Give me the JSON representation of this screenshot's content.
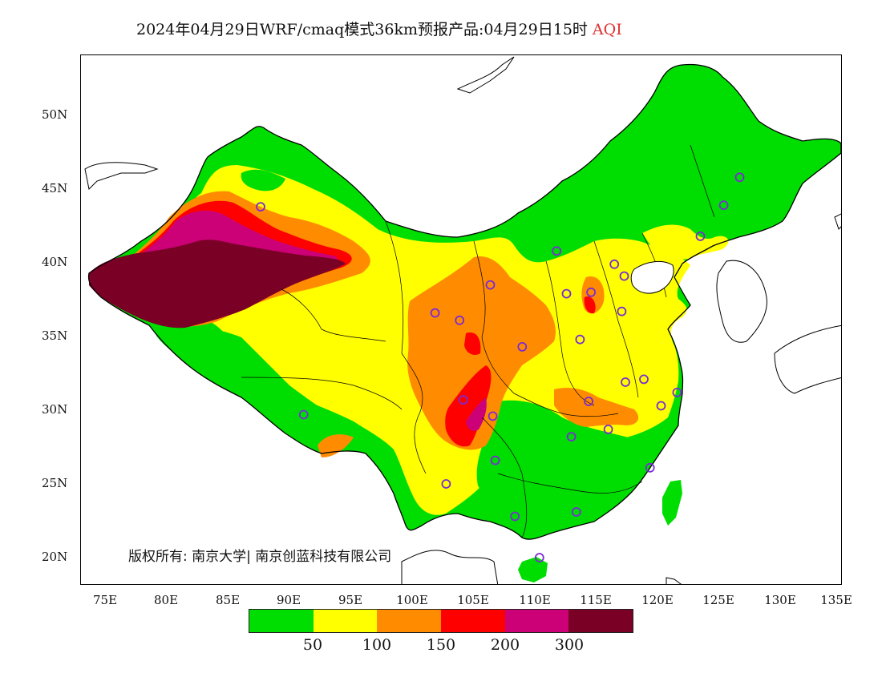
{
  "title": {
    "main": "2024年04月29日WRF/cmaq模式36km预报产品:04月29日15时",
    "variable": "AQI"
  },
  "copyright": "版权所有: 南京大学| 南京创蓝科技有限公司",
  "axes": {
    "lat_labels": [
      "50N",
      "45N",
      "40N",
      "35N",
      "30N",
      "25N",
      "20N"
    ],
    "lon_labels": [
      "75E",
      "80E",
      "85E",
      "90E",
      "95E",
      "100E",
      "105E",
      "110E",
      "115E",
      "120E",
      "125E",
      "130E",
      "135E"
    ]
  },
  "legend": {
    "colors": [
      "#00dd00",
      "#ffff00",
      "#ff8c00",
      "#ff0000",
      "#cc0077",
      "#7a0026"
    ],
    "ticks": [
      "50",
      "100",
      "150",
      "200",
      "300"
    ]
  },
  "map": {
    "extent": {
      "lon": [
        73,
        135
      ],
      "lat": [
        18,
        54
      ]
    },
    "aqi_colors": {
      "good": "#00dd00",
      "moderate": "#ffff00",
      "unhealthy_sensitive": "#ff8c00",
      "unhealthy": "#ff0000",
      "very_unhealthy": "#cc0077",
      "hazardous": "#7a0026"
    },
    "station_color": "#7a2bd6",
    "stations": [
      [
        126.6,
        45.8
      ],
      [
        125.3,
        43.9
      ],
      [
        123.4,
        41.8
      ],
      [
        111.7,
        40.8
      ],
      [
        116.4,
        39.9
      ],
      [
        117.2,
        39.1
      ],
      [
        114.5,
        38.0
      ],
      [
        112.5,
        37.9
      ],
      [
        106.3,
        38.5
      ],
      [
        103.8,
        36.1
      ],
      [
        101.8,
        36.6
      ],
      [
        117.0,
        36.7
      ],
      [
        108.9,
        34.3
      ],
      [
        113.6,
        34.8
      ],
      [
        87.6,
        43.8
      ],
      [
        91.1,
        29.7
      ],
      [
        104.1,
        30.7
      ],
      [
        106.5,
        29.6
      ],
      [
        114.3,
        30.6
      ],
      [
        112.9,
        28.2
      ],
      [
        115.9,
        28.7
      ],
      [
        117.3,
        31.9
      ],
      [
        118.8,
        32.1
      ],
      [
        120.2,
        30.3
      ],
      [
        121.5,
        31.2
      ],
      [
        119.3,
        26.1
      ],
      [
        113.3,
        23.1
      ],
      [
        108.3,
        22.8
      ],
      [
        110.3,
        20.0
      ],
      [
        106.7,
        26.6
      ],
      [
        102.7,
        25.0
      ]
    ]
  }
}
